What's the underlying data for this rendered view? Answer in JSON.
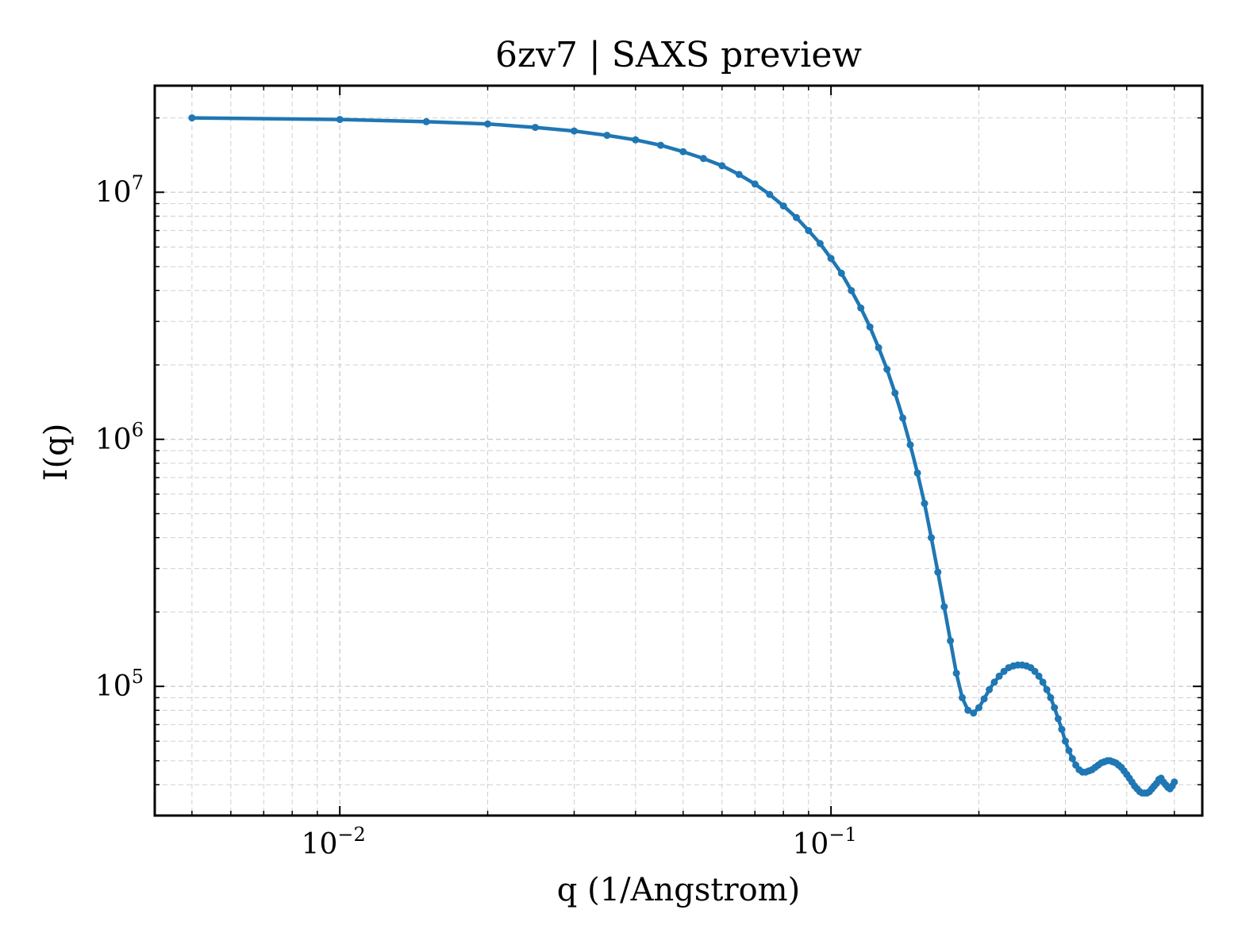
{
  "chart_data": {
    "type": "line",
    "title": "6zv7 | SAXS preview",
    "xlabel": "q (1/Angstrom)",
    "ylabel": "I(q)",
    "xscale": "log",
    "yscale": "log",
    "xlim": [
      0.0042,
      0.57
    ],
    "ylim": [
      30000,
      27000000
    ],
    "grid": true,
    "legend": "none",
    "x_ticks": [
      {
        "value": 0.01,
        "base": "10",
        "exp": "−2"
      },
      {
        "value": 0.1,
        "base": "10",
        "exp": "−1"
      }
    ],
    "y_ticks": [
      {
        "value": 100000,
        "base": "10",
        "exp": "5"
      },
      {
        "value": 1000000,
        "base": "10",
        "exp": "6"
      },
      {
        "value": 10000000,
        "base": "10",
        "exp": "7"
      }
    ],
    "colors": {
      "line": "#1f77b4",
      "grid": "#cfcfcf",
      "axes": "#000000"
    },
    "series": [
      {
        "x": [
          0.005,
          0.01,
          0.015,
          0.02,
          0.025,
          0.03,
          0.035,
          0.04,
          0.045,
          0.05,
          0.055,
          0.06,
          0.065,
          0.07,
          0.075,
          0.08,
          0.085,
          0.09,
          0.095,
          0.1,
          0.105,
          0.11,
          0.115,
          0.12,
          0.125,
          0.13,
          0.135,
          0.14,
          0.145,
          0.15,
          0.155,
          0.16,
          0.165,
          0.17,
          0.175,
          0.18,
          0.185,
          0.19,
          0.195,
          0.2,
          0.205,
          0.21,
          0.215,
          0.22,
          0.225,
          0.23,
          0.235,
          0.24,
          0.245,
          0.25,
          0.255,
          0.26,
          0.265,
          0.27,
          0.275,
          0.28,
          0.285,
          0.29,
          0.295,
          0.3,
          0.305,
          0.31,
          0.315,
          0.32,
          0.325,
          0.33,
          0.335,
          0.34,
          0.345,
          0.35,
          0.355,
          0.36,
          0.365,
          0.37,
          0.375,
          0.38,
          0.385,
          0.39,
          0.395,
          0.4,
          0.405,
          0.41,
          0.415,
          0.42,
          0.425,
          0.43,
          0.435,
          0.44,
          0.445,
          0.45,
          0.455,
          0.46,
          0.465,
          0.47,
          0.475,
          0.48,
          0.485,
          0.49,
          0.495,
          0.5
        ],
        "y": [
          20000000,
          19700000,
          19300000,
          18900000,
          18300000,
          17700000,
          17000000,
          16300000,
          15500000,
          14600000,
          13700000,
          12800000,
          11800000,
          10800000,
          9800000,
          8800000,
          7900000,
          7000000,
          6200000,
          5400000,
          4700000,
          4000000,
          3400000,
          2850000,
          2350000,
          1920000,
          1540000,
          1220000,
          950000,
          730000,
          550000,
          400000,
          290000,
          210000,
          153000,
          113000,
          90000,
          80000,
          78000,
          82000,
          89000,
          97000,
          104000,
          110000,
          115000,
          119000,
          121000,
          122000,
          122000,
          121000,
          119000,
          115000,
          110000,
          104000,
          97000,
          90000,
          82000,
          74000,
          67000,
          60000,
          55000,
          51000,
          48000,
          46000,
          45000,
          45000,
          45500,
          46000,
          47000,
          48000,
          49000,
          49500,
          50000,
          50000,
          49500,
          49000,
          48000,
          47000,
          45500,
          44000,
          42500,
          41000,
          39500,
          38500,
          37500,
          37000,
          37000,
          37000,
          37500,
          38500,
          39500,
          40500,
          42000,
          42500,
          41000,
          40000,
          39000,
          38500,
          39500,
          41000
        ]
      }
    ]
  }
}
